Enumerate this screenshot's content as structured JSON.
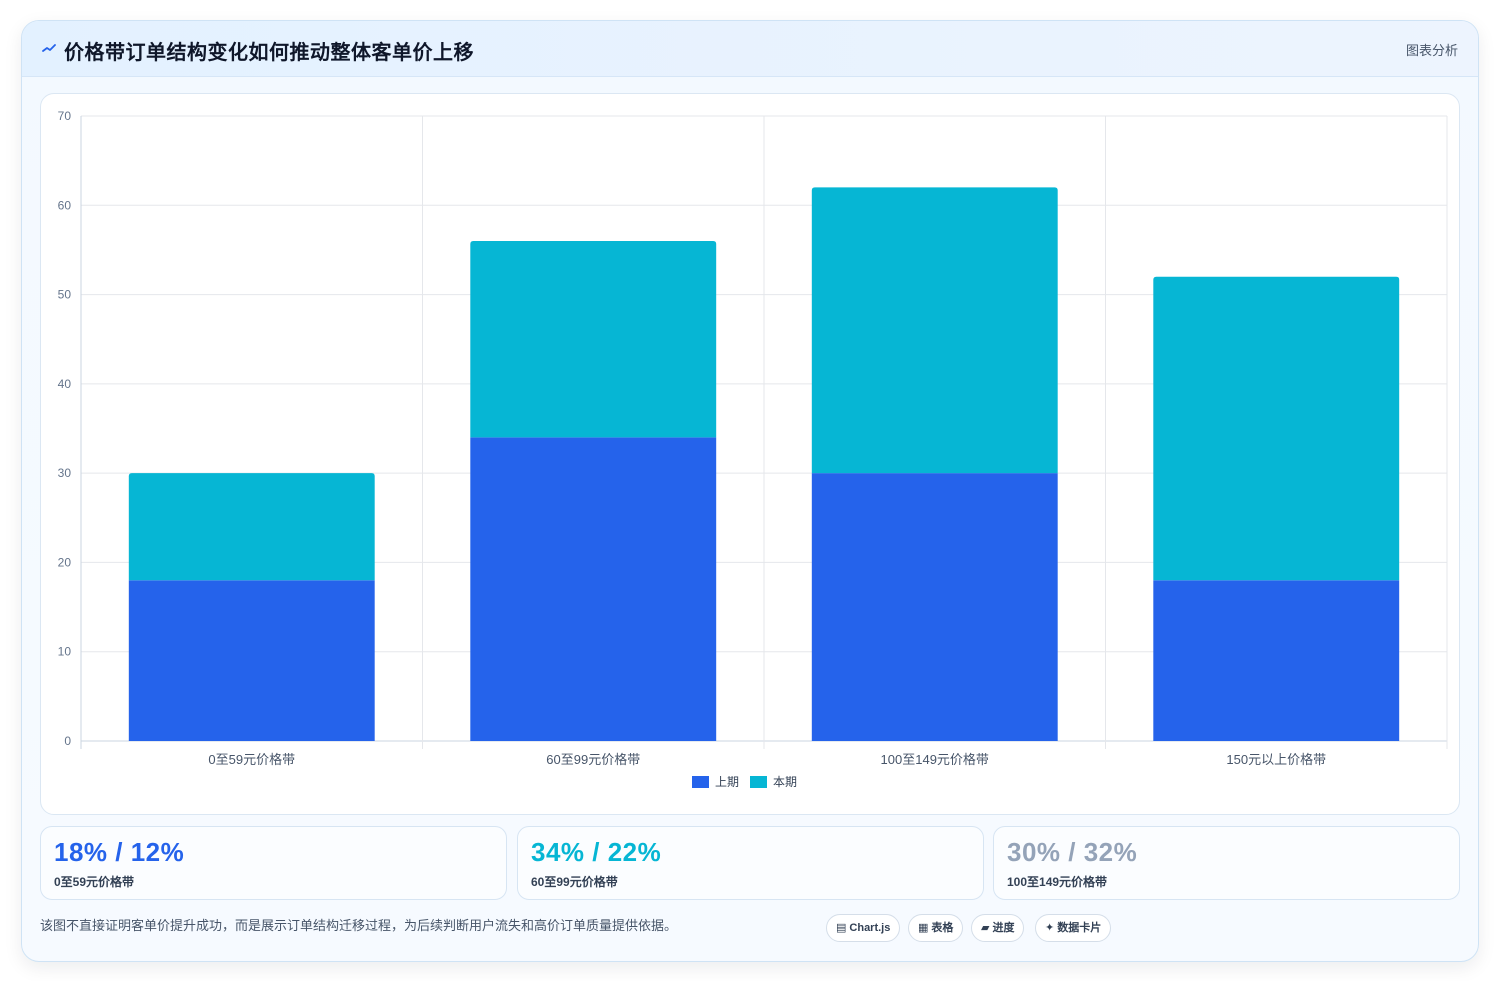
{
  "header": {
    "title": "价格带订单结构变化如何推动整体客单价上移",
    "tag": "图表分析"
  },
  "colors": {
    "previous": "#2563eb",
    "current": "#06b6d4",
    "muted": "#94a3b8"
  },
  "chart_data": {
    "type": "bar",
    "stacked": true,
    "categories": [
      "0至59元价格带",
      "60至99元价格带",
      "100至149元价格带",
      "150元以上价格带"
    ],
    "series": [
      {
        "name": "上期",
        "values": [
          18,
          34,
          30,
          18
        ]
      },
      {
        "name": "本期",
        "values": [
          12,
          22,
          32,
          34
        ]
      }
    ],
    "ylim": [
      0,
      70
    ],
    "yticks": [
      0,
      10,
      20,
      30,
      40,
      50,
      60,
      70
    ],
    "grid": true,
    "legend": "bottom"
  },
  "stats": [
    {
      "value": "18% / 12%",
      "label": "0至59元价格带"
    },
    {
      "value": "34% / 22%",
      "label": "60至99元价格带"
    },
    {
      "value": "30% / 32%",
      "label": "100至149元价格带"
    }
  ],
  "footnote": "该图不直接证明客单价提升成功，而是展示订单结构迁移过程，为后续判断用户流失和高价订单质量提供依据。",
  "chips": [
    {
      "icon": "▤",
      "label": "Chart.js"
    },
    {
      "icon": "▦",
      "label": "表格"
    },
    {
      "icon": "▰",
      "label": "进度"
    },
    {
      "icon": "✦",
      "label": "数据卡片"
    }
  ]
}
